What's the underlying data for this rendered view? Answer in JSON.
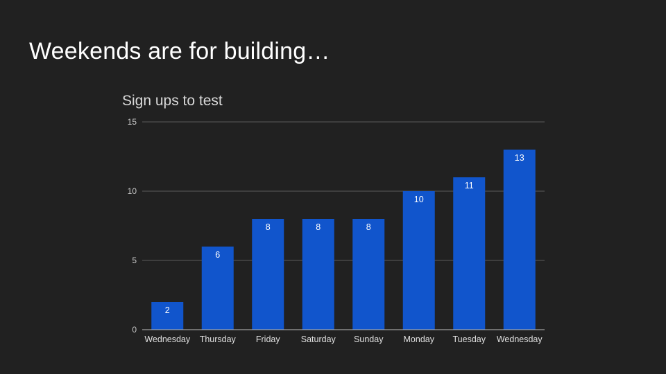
{
  "slide": {
    "title": "Weekends are for building…"
  },
  "chart_data": {
    "type": "bar",
    "title": "Sign ups to test",
    "xlabel": "",
    "ylabel": "",
    "categories": [
      "Wednesday",
      "Thursday",
      "Friday",
      "Saturday",
      "Sunday",
      "Monday",
      "Tuesday",
      "Wednesday"
    ],
    "values": [
      2,
      6,
      8,
      8,
      8,
      10,
      11,
      13
    ],
    "ylim": [
      0,
      15
    ],
    "yticks": [
      0,
      5,
      10,
      15
    ],
    "grid": true,
    "legend": "none",
    "colors": {
      "bar": "#1155cc",
      "gridline": "#5a5a5a",
      "axis": "#bdbdbd",
      "background": "#212121"
    }
  }
}
